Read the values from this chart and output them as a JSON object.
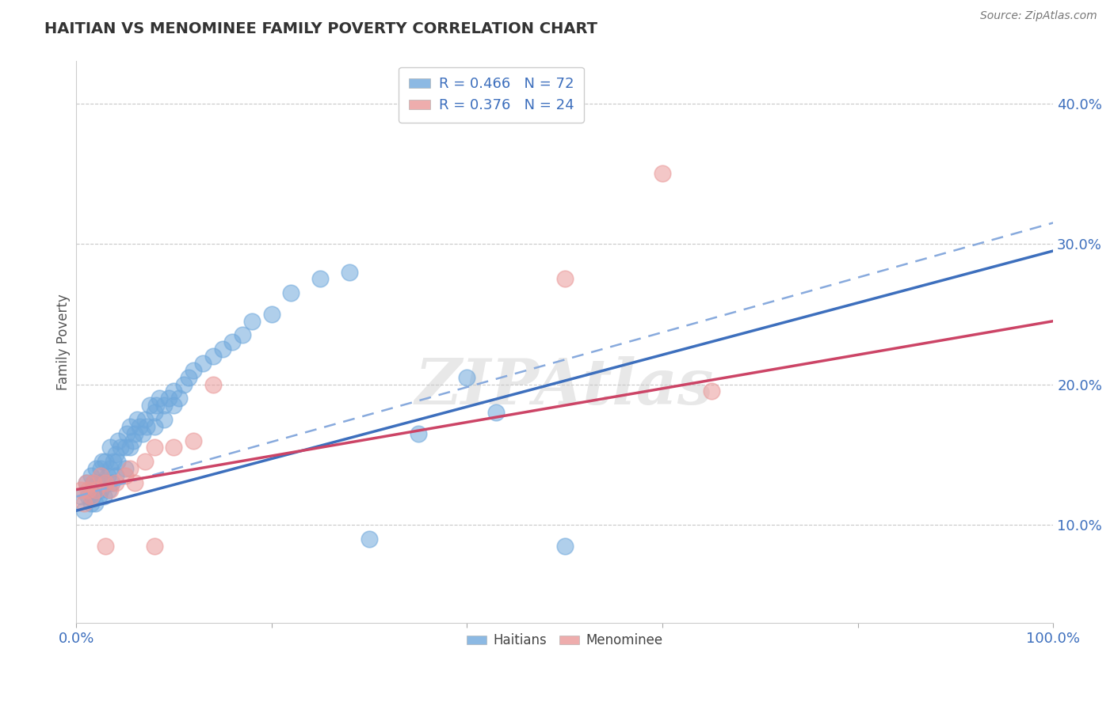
{
  "title": "HAITIAN VS MENOMINEE FAMILY POVERTY CORRELATION CHART",
  "source": "Source: ZipAtlas.com",
  "ylabel": "Family Poverty",
  "xlim": [
    0,
    1.0
  ],
  "ylim": [
    0.03,
    0.43
  ],
  "ytick_positions": [
    0.1,
    0.2,
    0.3,
    0.4
  ],
  "ytick_labels": [
    "10.0%",
    "20.0%",
    "30.0%",
    "40.0%"
  ],
  "grid_color": "#c8c8c8",
  "background_color": "#ffffff",
  "haitian_color": "#6fa8dc",
  "haitian_edge": "#5588cc",
  "menominee_color": "#ea9999",
  "menominee_edge": "#cc7777",
  "haitian_R": 0.466,
  "haitian_N": 72,
  "menominee_R": 0.376,
  "menominee_N": 24,
  "watermark": "ZIPAtlas",
  "haitian_line_color": "#3d6fbd",
  "menominee_line_color": "#cc4466",
  "dashed_line_color": "#88aadd",
  "haitian_x": [
    0.005,
    0.008,
    0.01,
    0.012,
    0.015,
    0.015,
    0.017,
    0.018,
    0.019,
    0.02,
    0.02,
    0.022,
    0.023,
    0.025,
    0.025,
    0.026,
    0.027,
    0.028,
    0.03,
    0.03,
    0.032,
    0.033,
    0.035,
    0.035,
    0.036,
    0.038,
    0.04,
    0.04,
    0.042,
    0.043,
    0.045,
    0.05,
    0.05,
    0.052,
    0.055,
    0.055,
    0.058,
    0.06,
    0.062,
    0.065,
    0.068,
    0.07,
    0.072,
    0.075,
    0.08,
    0.08,
    0.082,
    0.085,
    0.09,
    0.09,
    0.095,
    0.1,
    0.1,
    0.105,
    0.11,
    0.115,
    0.12,
    0.13,
    0.14,
    0.15,
    0.16,
    0.17,
    0.18,
    0.2,
    0.22,
    0.25,
    0.28,
    0.3,
    0.35,
    0.4,
    0.43,
    0.5
  ],
  "haitian_y": [
    0.12,
    0.11,
    0.13,
    0.12,
    0.115,
    0.135,
    0.12,
    0.13,
    0.115,
    0.125,
    0.14,
    0.13,
    0.12,
    0.125,
    0.14,
    0.13,
    0.145,
    0.12,
    0.13,
    0.145,
    0.135,
    0.125,
    0.14,
    0.155,
    0.13,
    0.145,
    0.135,
    0.15,
    0.145,
    0.16,
    0.155,
    0.14,
    0.155,
    0.165,
    0.155,
    0.17,
    0.16,
    0.165,
    0.175,
    0.17,
    0.165,
    0.175,
    0.17,
    0.185,
    0.18,
    0.17,
    0.185,
    0.19,
    0.185,
    0.175,
    0.19,
    0.185,
    0.195,
    0.19,
    0.2,
    0.205,
    0.21,
    0.215,
    0.22,
    0.225,
    0.23,
    0.235,
    0.245,
    0.25,
    0.265,
    0.275,
    0.28,
    0.09,
    0.165,
    0.205,
    0.18,
    0.085
  ],
  "menominee_x": [
    0.005,
    0.008,
    0.01,
    0.012,
    0.015,
    0.018,
    0.02,
    0.025,
    0.03,
    0.035,
    0.04,
    0.05,
    0.055,
    0.06,
    0.07,
    0.08,
    0.1,
    0.12,
    0.14,
    0.5,
    0.6,
    0.65,
    0.03,
    0.08
  ],
  "menominee_y": [
    0.125,
    0.115,
    0.13,
    0.125,
    0.12,
    0.13,
    0.125,
    0.135,
    0.13,
    0.125,
    0.13,
    0.135,
    0.14,
    0.13,
    0.145,
    0.155,
    0.155,
    0.16,
    0.2,
    0.275,
    0.35,
    0.195,
    0.085,
    0.085
  ],
  "haitian_line_x": [
    0.0,
    1.0
  ],
  "haitian_line_y": [
    0.11,
    0.295
  ],
  "menominee_line_x": [
    0.0,
    1.0
  ],
  "menominee_line_y": [
    0.125,
    0.245
  ],
  "dashed_line_x": [
    0.0,
    1.0
  ],
  "dashed_line_y": [
    0.12,
    0.315
  ]
}
